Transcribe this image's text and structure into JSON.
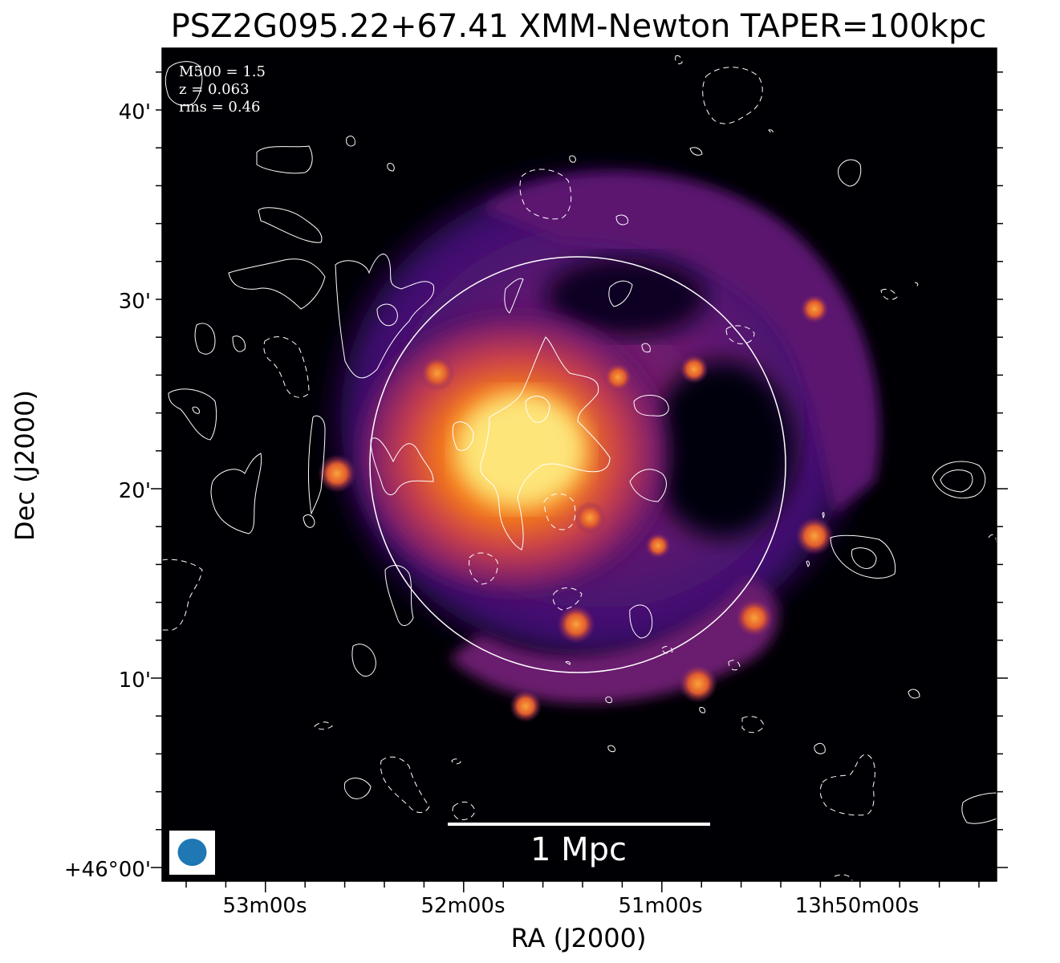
{
  "figure": {
    "title": "PSZ2G095.22+67.41 XMM-Newton TAPER=100kpc",
    "xlabel": "RA (J2000)",
    "ylabel": "Dec (J2000)",
    "annotations": {
      "m500": "M500 = 1.5",
      "z": "z = 0.063",
      "rms": "rms = 0.46"
    },
    "scalebar_label": "1 Mpc",
    "x_ticks": [
      "53m00s",
      "52m00s",
      "51m00s",
      "13h50m00s"
    ],
    "y_ticks": [
      "40'",
      "30'",
      "20'",
      "10'",
      "+46°00'"
    ],
    "beam_color": "#1f77b4",
    "colormap": "inferno"
  }
}
